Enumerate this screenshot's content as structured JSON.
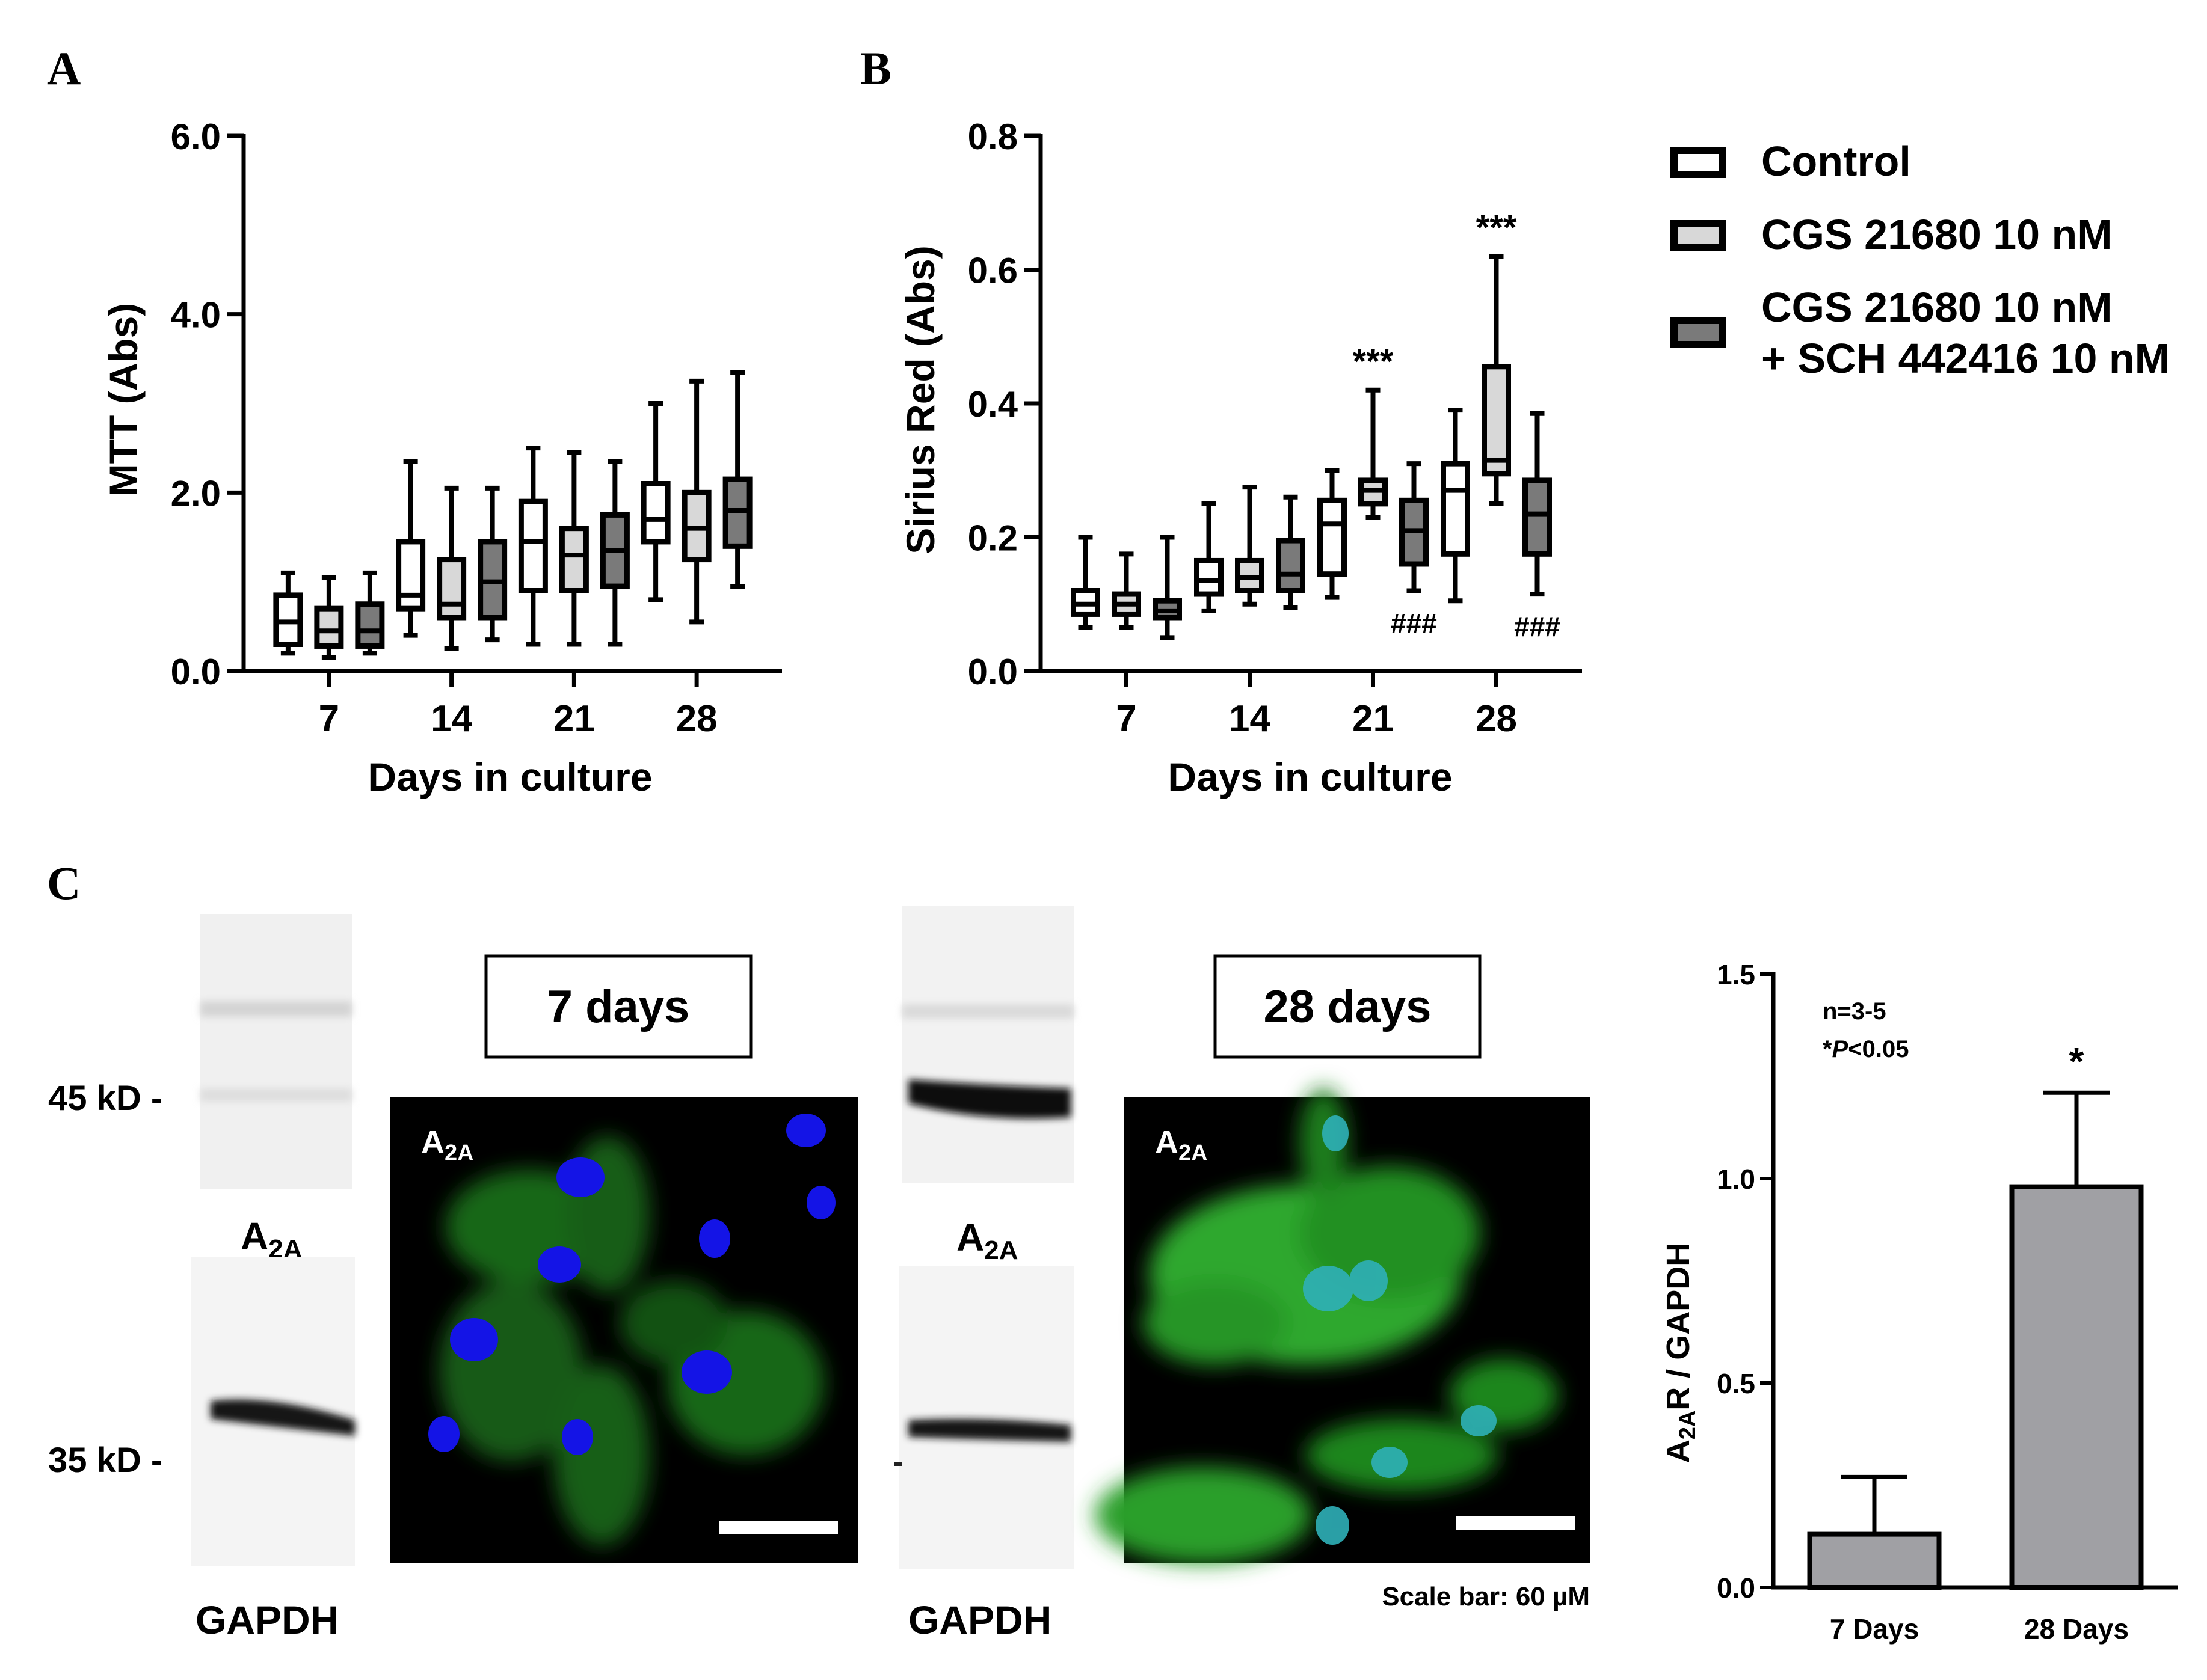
{
  "panels": {
    "a": "A",
    "b": "B",
    "c": "C"
  },
  "legend": {
    "items": [
      {
        "label": "Control",
        "fill": "#ffffff"
      },
      {
        "label": "CGS 21680 10 nM",
        "fill": "#d8d8d8"
      },
      {
        "label_line1": "CGS 21680 10 nM",
        "label_line2": "+ SCH 442416 10 nM",
        "fill": "#7a7a7a"
      }
    ]
  },
  "chart_data": [
    {
      "id": "A",
      "type": "box",
      "xlabel": "Days in culture",
      "ylabel": "MTT (Abs)",
      "ylim": [
        0,
        6
      ],
      "yticks": [
        "0.0",
        "2.0",
        "4.0",
        "6.0"
      ],
      "ytick_values": [
        0,
        2,
        4,
        6
      ],
      "categories": [
        "7",
        "14",
        "21",
        "28"
      ],
      "series": [
        {
          "name": "Control",
          "fill": "#ffffff",
          "boxes": [
            {
              "min": 0.2,
              "q1": 0.3,
              "median": 0.55,
              "q3": 0.85,
              "max": 1.1
            },
            {
              "min": 0.4,
              "q1": 0.7,
              "median": 0.85,
              "q3": 1.45,
              "max": 2.35
            },
            {
              "min": 0.3,
              "q1": 0.9,
              "median": 1.45,
              "q3": 1.9,
              "max": 2.5
            },
            {
              "min": 0.8,
              "q1": 1.45,
              "median": 1.7,
              "q3": 2.1,
              "max": 3.0
            }
          ]
        },
        {
          "name": "CGS 21680 10 nM",
          "fill": "#d8d8d8",
          "boxes": [
            {
              "min": 0.15,
              "q1": 0.28,
              "median": 0.45,
              "q3": 0.7,
              "max": 1.05
            },
            {
              "min": 0.25,
              "q1": 0.6,
              "median": 0.75,
              "q3": 1.25,
              "max": 2.05
            },
            {
              "min": 0.3,
              "q1": 0.9,
              "median": 1.3,
              "q3": 1.6,
              "max": 2.45
            },
            {
              "min": 0.55,
              "q1": 1.25,
              "median": 1.6,
              "q3": 2.0,
              "max": 3.25
            }
          ]
        },
        {
          "name": "CGS 21680 10 nM + SCH 442416 10 nM",
          "fill": "#7a7a7a",
          "boxes": [
            {
              "min": 0.2,
              "q1": 0.28,
              "median": 0.45,
              "q3": 0.75,
              "max": 1.1
            },
            {
              "min": 0.35,
              "q1": 0.6,
              "median": 1.0,
              "q3": 1.45,
              "max": 2.05
            },
            {
              "min": 0.3,
              "q1": 0.95,
              "median": 1.35,
              "q3": 1.75,
              "max": 2.35
            },
            {
              "min": 0.95,
              "q1": 1.4,
              "median": 1.8,
              "q3": 2.15,
              "max": 3.35
            }
          ]
        }
      ]
    },
    {
      "id": "B",
      "type": "box",
      "xlabel": "Days in culture",
      "ylabel": "Sirius Red (Abs)",
      "ylim": [
        0,
        0.8
      ],
      "yticks": [
        "0.0",
        "0.2",
        "0.4",
        "0.6",
        "0.8"
      ],
      "ytick_values": [
        0,
        0.2,
        0.4,
        0.6,
        0.8
      ],
      "categories": [
        "7",
        "14",
        "21",
        "28"
      ],
      "series": [
        {
          "name": "Control",
          "fill": "#ffffff",
          "boxes": [
            {
              "min": 0.065,
              "q1": 0.085,
              "median": 0.1,
              "q3": 0.12,
              "max": 0.2
            },
            {
              "min": 0.09,
              "q1": 0.115,
              "median": 0.135,
              "q3": 0.165,
              "max": 0.25
            },
            {
              "min": 0.11,
              "q1": 0.145,
              "median": 0.22,
              "q3": 0.255,
              "max": 0.3
            },
            {
              "min": 0.105,
              "q1": 0.175,
              "median": 0.27,
              "q3": 0.31,
              "max": 0.39
            }
          ]
        },
        {
          "name": "CGS 21680 10 nM",
          "fill": "#d8d8d8",
          "boxes": [
            {
              "min": 0.065,
              "q1": 0.085,
              "median": 0.1,
              "q3": 0.115,
              "max": 0.175
            },
            {
              "min": 0.1,
              "q1": 0.12,
              "median": 0.14,
              "q3": 0.165,
              "max": 0.275
            },
            {
              "min": 0.23,
              "q1": 0.25,
              "median": 0.27,
              "q3": 0.285,
              "max": 0.42
            },
            {
              "min": 0.25,
              "q1": 0.295,
              "median": 0.315,
              "q3": 0.455,
              "max": 0.62
            }
          ]
        },
        {
          "name": "CGS 21680 10 nM + SCH 442416 10 nM",
          "fill": "#7a7a7a",
          "boxes": [
            {
              "min": 0.05,
              "q1": 0.08,
              "median": 0.09,
              "q3": 0.105,
              "max": 0.2
            },
            {
              "min": 0.095,
              "q1": 0.12,
              "median": 0.145,
              "q3": 0.195,
              "max": 0.26
            },
            {
              "min": 0.12,
              "q1": 0.16,
              "median": 0.21,
              "q3": 0.255,
              "max": 0.31
            },
            {
              "min": 0.115,
              "q1": 0.175,
              "median": 0.235,
              "q3": 0.285,
              "max": 0.385
            }
          ]
        }
      ],
      "annotations": [
        {
          "text": "***",
          "category": "21",
          "series": 1,
          "pos": "above",
          "value": 0.42
        },
        {
          "text": "***",
          "category": "28",
          "series": 1,
          "pos": "above",
          "value": 0.62
        },
        {
          "text": "###",
          "category": "21",
          "series": 2,
          "pos": "below",
          "value": 0.12
        },
        {
          "text": "###",
          "category": "28",
          "series": 2,
          "pos": "below",
          "value": 0.115
        }
      ]
    },
    {
      "id": "C",
      "type": "bar",
      "ylabel_main": "A",
      "ylabel_sub": "2A",
      "ylabel_rest": "R / GAPDH",
      "ylim": [
        0,
        1.5
      ],
      "yticks": [
        "0.0",
        "0.5",
        "1.0",
        "1.5"
      ],
      "ytick_values": [
        0,
        0.5,
        1.0,
        1.5
      ],
      "categories": [
        "7 Days",
        "28 Days"
      ],
      "values": [
        0.13,
        0.98
      ],
      "errors": [
        0.14,
        0.23
      ],
      "fill": "#a0a0a4",
      "note_line1": "n=3-5",
      "note_line2_prefix": "*",
      "note_line2_italic": "P",
      "note_line2_rest": "<0.05",
      "significance": [
        "",
        "*"
      ]
    }
  ],
  "western": {
    "kd45": "45 kD -",
    "kd35": "35 kD -",
    "a2a_main": "A",
    "a2a_sub": "2A",
    "gapdh": "GAPDH",
    "day7_label": "7 days",
    "day28_label": "28 days",
    "scale_bar": "Scale bar: 60 µM",
    "if_label_main": "A",
    "if_label_sub": "2A"
  }
}
